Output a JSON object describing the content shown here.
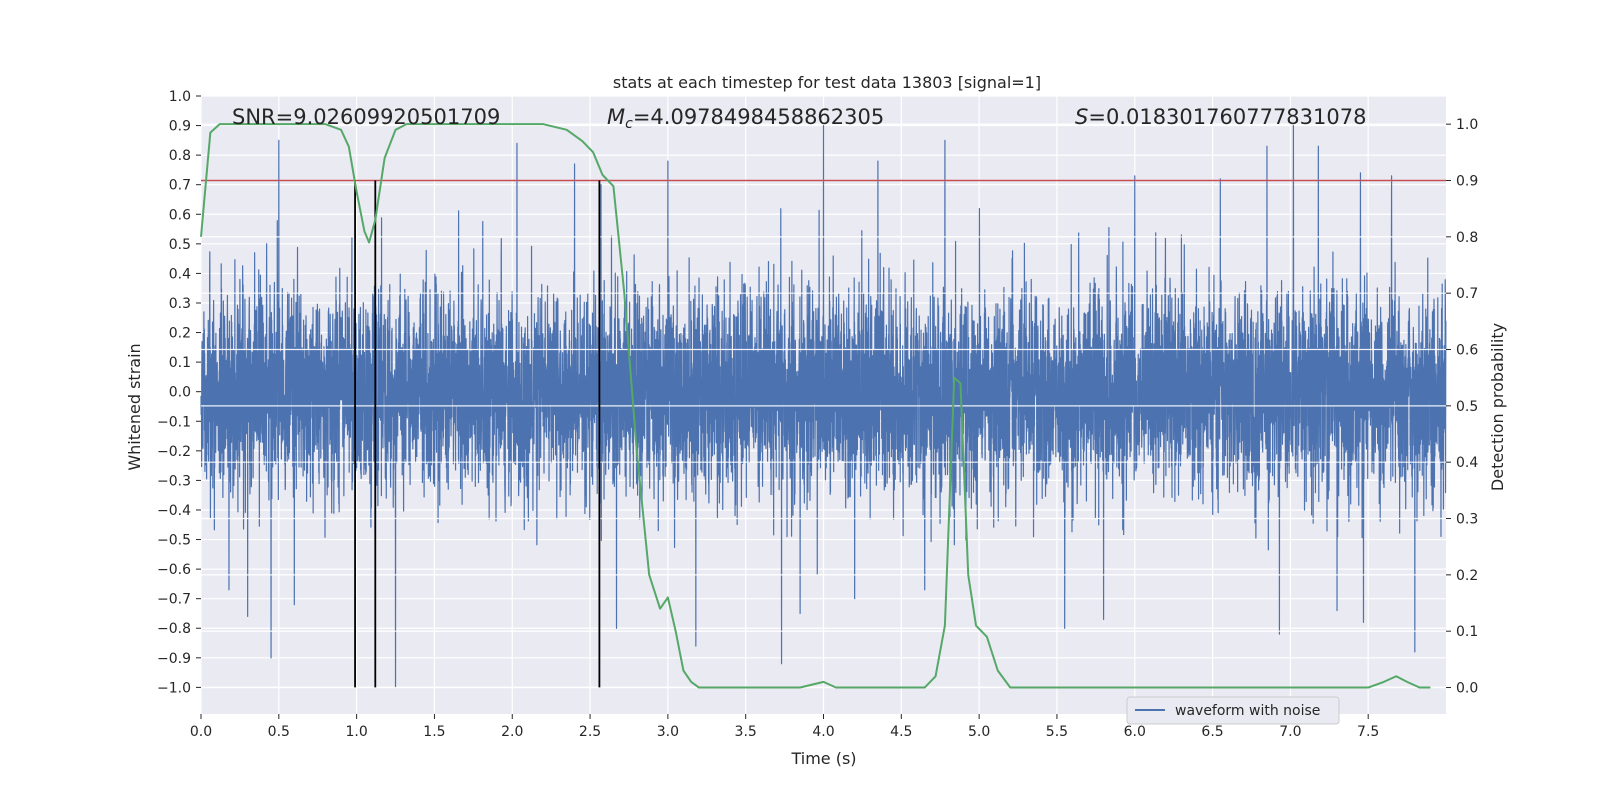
{
  "chart_data": {
    "type": "line",
    "title": "stats at each timestep for test data 13803 [signal=1]",
    "xlabel": "Time (s)",
    "ylabel": "Whitened strain",
    "y2label": "Detection probability",
    "xlim": [
      0.0,
      8.0
    ],
    "ylim": [
      -1.09,
      1.0
    ],
    "y2lim": [
      -0.047,
      1.05
    ],
    "xticks": [
      "0.0",
      "0.5",
      "1.0",
      "1.5",
      "2.0",
      "2.5",
      "3.0",
      "3.5",
      "4.0",
      "4.5",
      "5.0",
      "5.5",
      "6.0",
      "6.5",
      "7.0",
      "7.5"
    ],
    "yticks": [
      "1.0",
      "0.9",
      "0.8",
      "0.7",
      "0.6",
      "0.5",
      "0.4",
      "0.3",
      "0.2",
      "0.1",
      "0.0",
      "-0.1",
      "-0.2",
      "-0.3",
      "-0.4",
      "-0.5",
      "-0.6",
      "-0.7",
      "-0.8",
      "-0.9",
      "-1.0"
    ],
    "y2ticks": [
      "1.0",
      "0.9",
      "0.8",
      "0.7",
      "0.6",
      "0.5",
      "0.4",
      "0.3",
      "0.2",
      "0.1",
      "0.0"
    ],
    "grid": true,
    "annotations": {
      "snr": "SNR=9.02609920501709",
      "mc_symbol": "M",
      "mc_sub": "c",
      "mc_value": "=4.0978498458862305",
      "s_symbol": "S",
      "s_value": "=0.018301760777831078"
    },
    "legend": {
      "label": "waveform with noise",
      "position": "lower-right"
    },
    "series": [
      {
        "name": "waveform with noise",
        "axis": "left",
        "color": "#4c72b0",
        "kind": "noise",
        "sample_rate_hz": 1024,
        "spike_peaks": [
          [
            0.5,
            0.85
          ],
          [
            0.45,
            -0.9
          ],
          [
            0.3,
            -0.76
          ],
          [
            0.18,
            -0.67
          ],
          [
            0.6,
            -0.72
          ],
          [
            1.25,
            -1.0
          ],
          [
            2.03,
            0.84
          ],
          [
            2.4,
            0.77
          ],
          [
            2.57,
            0.7
          ],
          [
            2.67,
            -0.8
          ],
          [
            3.0,
            0.78
          ],
          [
            3.18,
            -0.86
          ],
          [
            3.73,
            -0.92
          ],
          [
            3.85,
            -0.75
          ],
          [
            4.0,
            0.9
          ],
          [
            4.2,
            -0.7
          ],
          [
            4.35,
            0.78
          ],
          [
            4.65,
            -0.67
          ],
          [
            4.78,
            0.85
          ],
          [
            5.55,
            -0.8
          ],
          [
            5.8,
            -0.77
          ],
          [
            6.0,
            0.73
          ],
          [
            6.55,
            0.72
          ],
          [
            6.85,
            0.83
          ],
          [
            6.93,
            -0.82
          ],
          [
            7.02,
            0.9
          ],
          [
            7.18,
            0.83
          ],
          [
            7.3,
            -0.74
          ],
          [
            7.45,
            0.74
          ],
          [
            7.47,
            -0.78
          ],
          [
            7.65,
            0.73
          ],
          [
            7.8,
            -0.88
          ]
        ]
      },
      {
        "name": "detection probability",
        "axis": "right",
        "color": "#55a868",
        "x": [
          0.0,
          0.06,
          0.12,
          0.2,
          0.3,
          0.5,
          0.7,
          0.8,
          0.9,
          0.95,
          1.0,
          1.05,
          1.08,
          1.12,
          1.18,
          1.25,
          1.32,
          1.45,
          1.6,
          1.8,
          2.0,
          2.2,
          2.35,
          2.45,
          2.52,
          2.58,
          2.65,
          2.72,
          2.8,
          2.88,
          2.95,
          3.0,
          3.05,
          3.1,
          3.15,
          3.2,
          3.3,
          3.5,
          3.7,
          3.85,
          4.0,
          4.08,
          4.15,
          4.25,
          4.4,
          4.55,
          4.65,
          4.72,
          4.78,
          4.84,
          4.88,
          4.93,
          4.98,
          5.05,
          5.12,
          5.2,
          5.28,
          5.4,
          5.6,
          5.8,
          6.0,
          6.3,
          6.6,
          6.9,
          7.1,
          7.3,
          7.5,
          7.6,
          7.68,
          7.75,
          7.83,
          7.9
        ],
        "y": [
          0.8,
          0.985,
          1.0,
          1.0,
          1.0,
          1.0,
          1.0,
          1.0,
          0.99,
          0.96,
          0.88,
          0.81,
          0.79,
          0.83,
          0.94,
          0.99,
          1.0,
          1.0,
          1.0,
          1.0,
          1.0,
          1.0,
          0.99,
          0.97,
          0.95,
          0.91,
          0.89,
          0.7,
          0.42,
          0.2,
          0.14,
          0.16,
          0.1,
          0.03,
          0.01,
          0.0,
          0.0,
          0.0,
          0.0,
          0.0,
          0.01,
          0.0,
          0.0,
          0.0,
          0.0,
          0.0,
          0.0,
          0.02,
          0.11,
          0.55,
          0.54,
          0.2,
          0.11,
          0.09,
          0.03,
          0.0,
          0.0,
          0.0,
          0.0,
          0.0,
          0.0,
          0.0,
          0.0,
          0.0,
          0.0,
          0.0,
          0.0,
          0.01,
          0.02,
          0.01,
          0.0,
          0.0
        ]
      },
      {
        "name": "threshold",
        "axis": "right",
        "color": "#c44e52",
        "y": 0.9
      }
    ],
    "vertical_lines": {
      "color": "#000000",
      "x": [
        0.99,
        1.12,
        2.56
      ],
      "ymin": -1.0,
      "ymax": 0.9
    }
  }
}
